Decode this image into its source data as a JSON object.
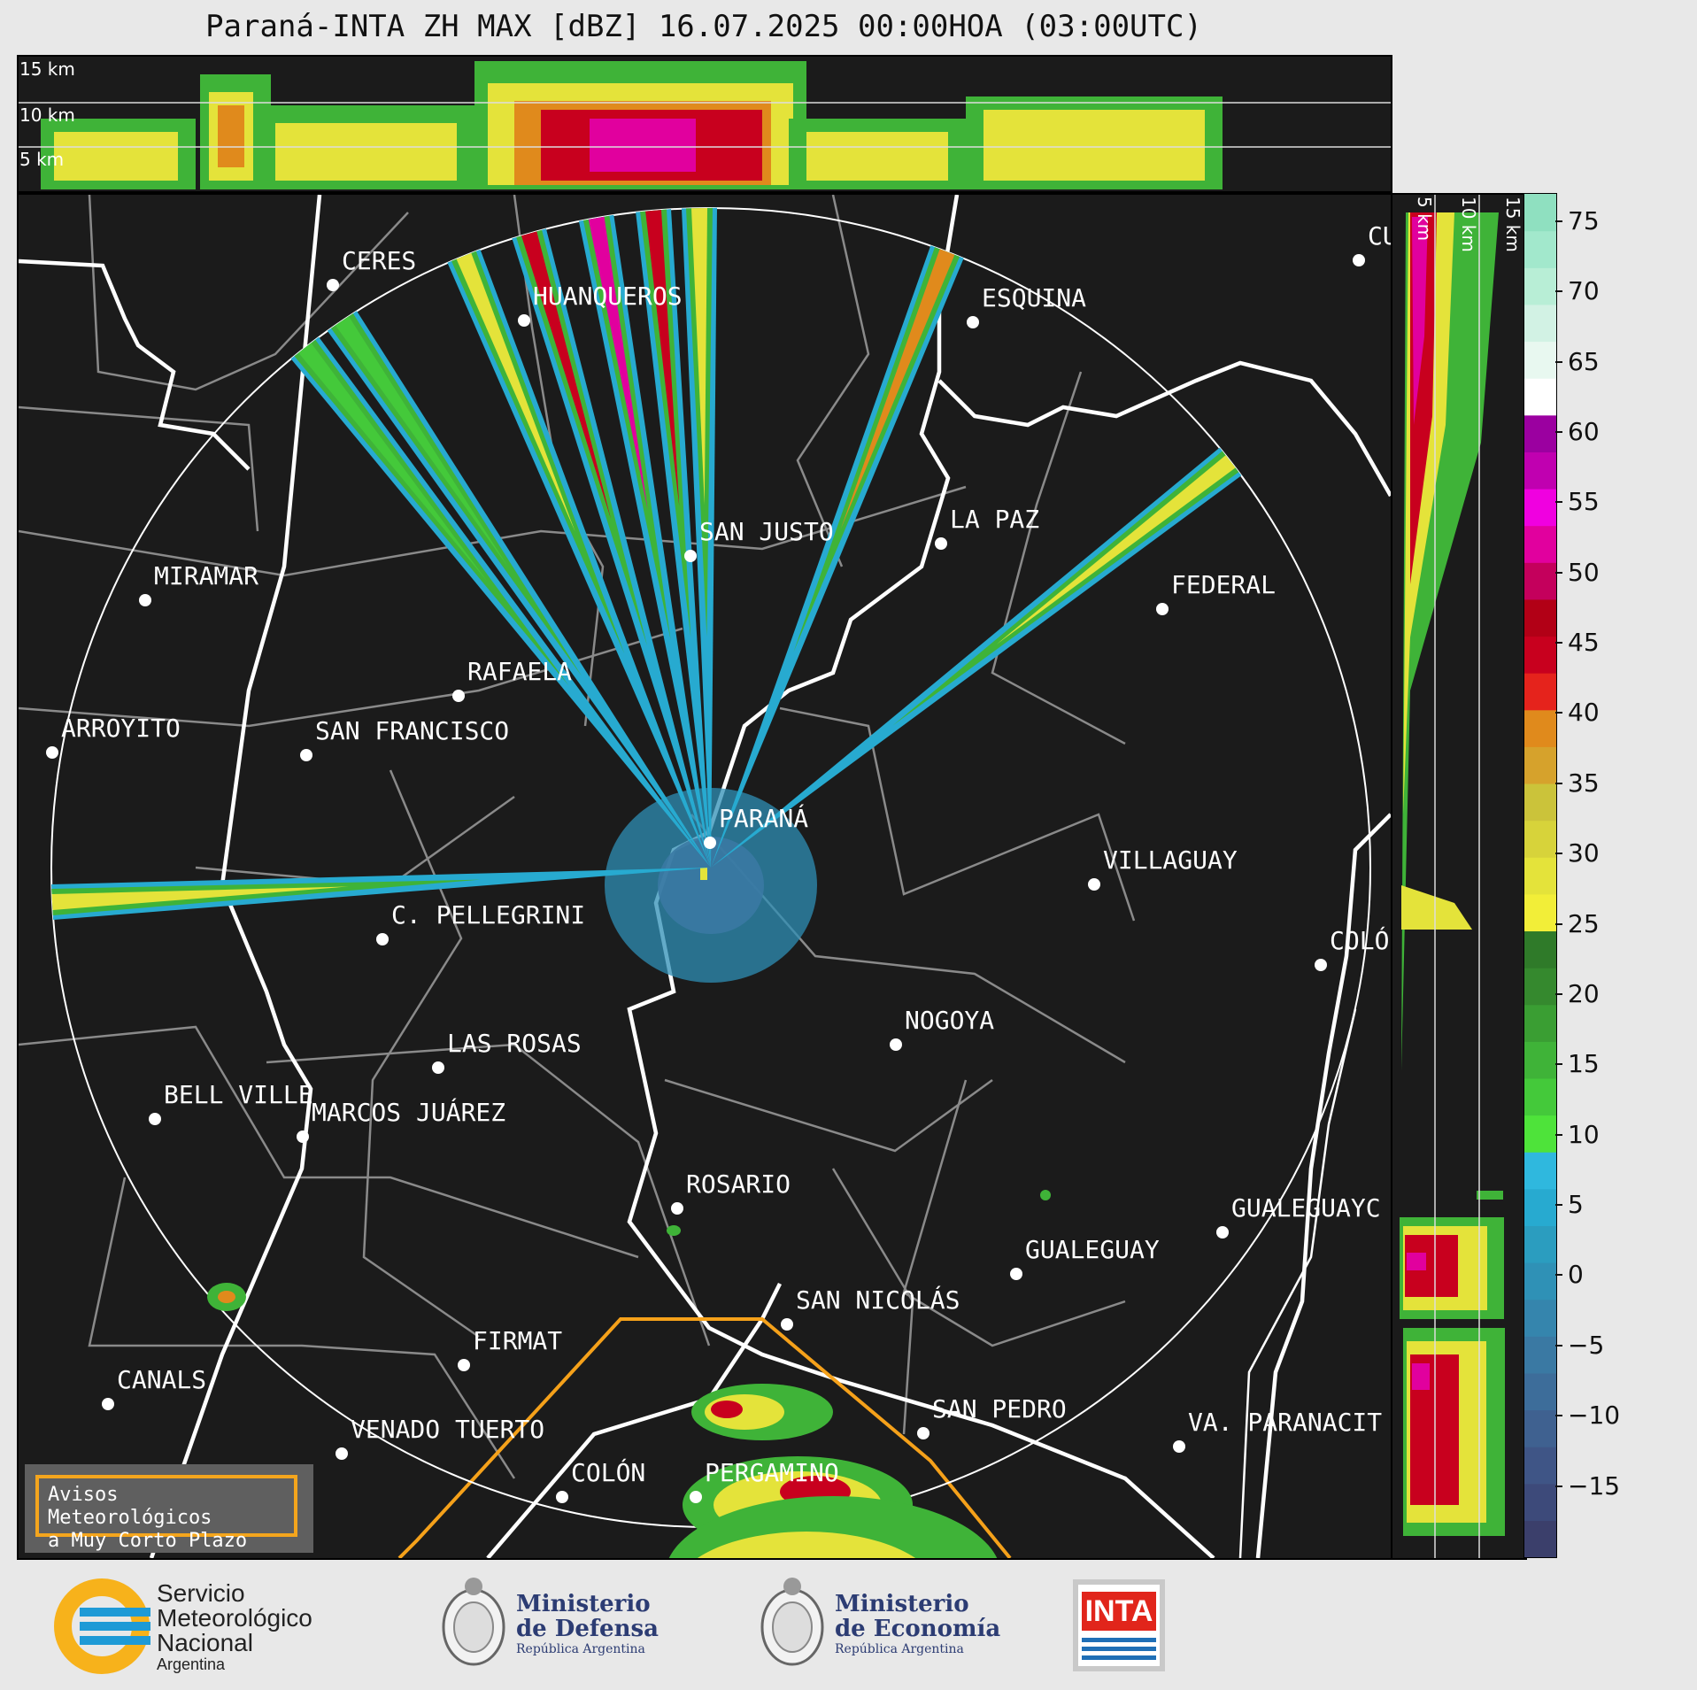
{
  "title": "Paraná-INTA ZH MAX [dBZ] 16.07.2025 00:00HOA (03:00UTC)",
  "height_labels_top": [
    "15 km",
    "10 km",
    "5 km"
  ],
  "height_labels_side": [
    "5 km",
    "10 km",
    "15 km"
  ],
  "colorbar": {
    "unit": "dBZ",
    "ticks": [
      "75",
      "70",
      "65",
      "60",
      "55",
      "50",
      "45",
      "40",
      "35",
      "30",
      "25",
      "20",
      "15",
      "10",
      "5",
      "0",
      "−5",
      "−10",
      "−15"
    ],
    "range": [
      -20,
      77
    ],
    "colors": [
      "#3b3f6b",
      "#3d4a7a",
      "#3f5586",
      "#3f6190",
      "#3d6d9a",
      "#3a79a3",
      "#3585ad",
      "#2f91b6",
      "#2b9dbf",
      "#27aad0",
      "#2fb8de",
      "#4ee33a",
      "#44c93a",
      "#3fb338",
      "#3a9e33",
      "#35892e",
      "#2f7a29",
      "#f2ee38",
      "#e4e33a",
      "#d7d33a",
      "#cbc33a",
      "#d6a22c",
      "#e08a1c",
      "#e5231c",
      "#c8001e",
      "#b20016",
      "#c4005c",
      "#e1009e",
      "#f000e0",
      "#c000b0",
      "#9b00a0",
      "#ffffff",
      "#e8f8f0",
      "#d2f2e4",
      "#b8eed6",
      "#a2e8cc",
      "#8fe0c0"
    ]
  },
  "radar": {
    "site": "PARANÁ",
    "range_ring_km": 240,
    "wedges": [
      {
        "azimuth_deg": -38,
        "kind": "green"
      },
      {
        "azimuth_deg": -34,
        "kind": "green"
      },
      {
        "azimuth_deg": -22,
        "kind": "yellow"
      },
      {
        "azimuth_deg": -16,
        "kind": "red"
      },
      {
        "azimuth_deg": -10,
        "kind": "magenta"
      },
      {
        "azimuth_deg": -5,
        "kind": "red"
      },
      {
        "azimuth_deg": -1,
        "kind": "yellow"
      },
      {
        "azimuth_deg": 21,
        "kind": "orange"
      },
      {
        "azimuth_deg": 52,
        "kind": "yellow"
      },
      {
        "azimuth_deg": 267,
        "kind": "yellow"
      }
    ]
  },
  "cities": [
    {
      "name": "CERES"
    },
    {
      "name": "HUANQUEROS"
    },
    {
      "name": "ESQUINA"
    },
    {
      "name": "CU"
    },
    {
      "name": "SAN JUSTO"
    },
    {
      "name": "LA PAZ"
    },
    {
      "name": "MIRAMAR"
    },
    {
      "name": "FEDERAL"
    },
    {
      "name": "RAFAELA"
    },
    {
      "name": "ARROYITO"
    },
    {
      "name": "SAN FRANCISCO"
    },
    {
      "name": "PARANÁ"
    },
    {
      "name": "VILLAGUAY"
    },
    {
      "name": "C. PELLEGRINI"
    },
    {
      "name": "COLÓ"
    },
    {
      "name": "NOGOYA"
    },
    {
      "name": "LAS ROSAS"
    },
    {
      "name": "BELL VILLE"
    },
    {
      "name": "MARCOS JUÁREZ"
    },
    {
      "name": "ROSARIO"
    },
    {
      "name": "GUALEGUAYC"
    },
    {
      "name": "GUALEGUAY"
    },
    {
      "name": "SAN NICOLÁS"
    },
    {
      "name": "FIRMAT"
    },
    {
      "name": "CANALS"
    },
    {
      "name": "SAN PEDRO"
    },
    {
      "name": "VENADO TUERTO"
    },
    {
      "name": "VA. PARANACIT"
    },
    {
      "name": "COLÓN"
    },
    {
      "name": "PERGAMINO"
    }
  ],
  "warning_box": {
    "line1": "Avisos Meteorológicos",
    "line2": "a Muy Corto Plazo"
  },
  "footer": {
    "smn": {
      "line1": "Servicio",
      "line2": "Meteorológico",
      "line3": "Nacional",
      "line4": "Argentina"
    },
    "defensa": {
      "line1": "Ministerio",
      "line2": "de Defensa",
      "line3": "República Argentina"
    },
    "economia": {
      "line1": "Ministerio",
      "line2": "de Economía",
      "line3": "República Argentina"
    },
    "inta": "INTA"
  }
}
